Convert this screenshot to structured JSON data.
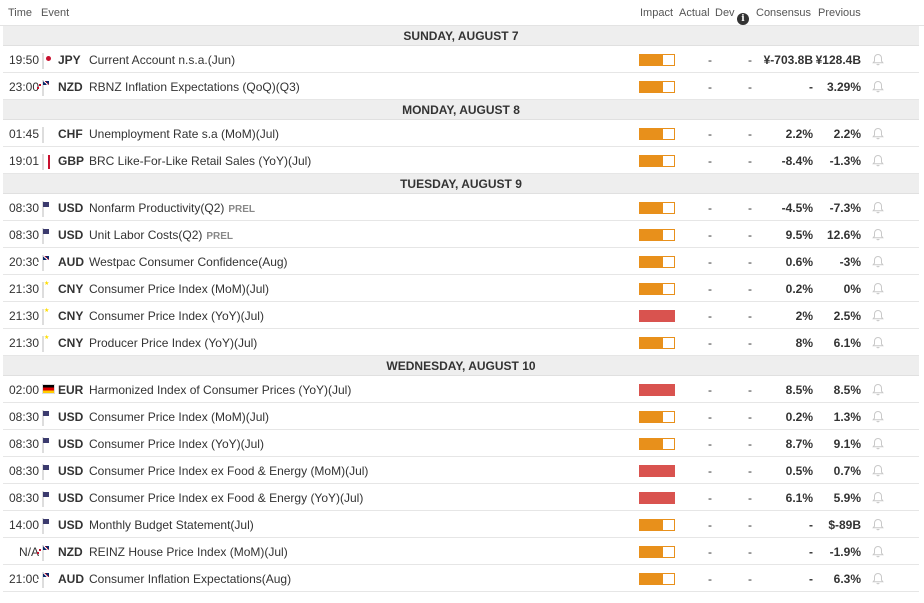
{
  "columns": {
    "time": "Time",
    "event": "Event",
    "impact": "Impact",
    "actual": "Actual",
    "dev": "Dev",
    "consensus": "Consensus",
    "previous": "Previous"
  },
  "colors": {
    "medium_impact": "#e8901b",
    "high_impact": "#d9534f",
    "day_header_bg": "#eeeeee"
  },
  "days": [
    {
      "label": "SUNDAY, AUGUST 7",
      "events": [
        {
          "time": "19:50",
          "flag": "jpy",
          "currency": "JPY",
          "name": "Current Account n.s.a.(Jun)",
          "tag": "",
          "impact": "medium",
          "actual": "-",
          "dev": "-",
          "consensus": "¥-703.8B",
          "previous": "¥128.4B"
        },
        {
          "time": "23:00",
          "flag": "nzd",
          "currency": "NZD",
          "name": "RBNZ Inflation Expectations (QoQ)(Q3)",
          "tag": "",
          "impact": "medium",
          "actual": "-",
          "dev": "-",
          "consensus": "-",
          "previous": "3.29%"
        }
      ]
    },
    {
      "label": "MONDAY, AUGUST 8",
      "events": [
        {
          "time": "01:45",
          "flag": "chf",
          "currency": "CHF",
          "name": "Unemployment Rate s.a (MoM)(Jul)",
          "tag": "",
          "impact": "medium",
          "actual": "-",
          "dev": "-",
          "consensus": "2.2%",
          "previous": "2.2%"
        },
        {
          "time": "19:01",
          "flag": "gbp",
          "currency": "GBP",
          "name": "BRC Like-For-Like Retail Sales (YoY)(Jul)",
          "tag": "",
          "impact": "medium",
          "actual": "-",
          "dev": "-",
          "consensus": "-8.4%",
          "previous": "-1.3%"
        }
      ]
    },
    {
      "label": "TUESDAY, AUGUST 9",
      "events": [
        {
          "time": "08:30",
          "flag": "usd",
          "currency": "USD",
          "name": "Nonfarm Productivity(Q2)",
          "tag": "PREL",
          "impact": "medium",
          "actual": "-",
          "dev": "-",
          "consensus": "-4.5%",
          "previous": "-7.3%"
        },
        {
          "time": "08:30",
          "flag": "usd",
          "currency": "USD",
          "name": "Unit Labor Costs(Q2)",
          "tag": "PREL",
          "impact": "medium",
          "actual": "-",
          "dev": "-",
          "consensus": "9.5%",
          "previous": "12.6%"
        },
        {
          "time": "20:30",
          "flag": "aud",
          "currency": "AUD",
          "name": "Westpac Consumer Confidence(Aug)",
          "tag": "",
          "impact": "medium",
          "actual": "-",
          "dev": "-",
          "consensus": "0.6%",
          "previous": "-3%"
        },
        {
          "time": "21:30",
          "flag": "cny",
          "currency": "CNY",
          "name": "Consumer Price Index (MoM)(Jul)",
          "tag": "",
          "impact": "medium",
          "actual": "-",
          "dev": "-",
          "consensus": "0.2%",
          "previous": "0%"
        },
        {
          "time": "21:30",
          "flag": "cny",
          "currency": "CNY",
          "name": "Consumer Price Index (YoY)(Jul)",
          "tag": "",
          "impact": "high",
          "actual": "-",
          "dev": "-",
          "consensus": "2%",
          "previous": "2.5%"
        },
        {
          "time": "21:30",
          "flag": "cny",
          "currency": "CNY",
          "name": "Producer Price Index (YoY)(Jul)",
          "tag": "",
          "impact": "medium",
          "actual": "-",
          "dev": "-",
          "consensus": "8%",
          "previous": "6.1%"
        }
      ]
    },
    {
      "label": "WEDNESDAY, AUGUST 10",
      "events": [
        {
          "time": "02:00",
          "flag": "eur",
          "currency": "EUR",
          "name": "Harmonized Index of Consumer Prices (YoY)(Jul)",
          "tag": "",
          "impact": "high",
          "actual": "-",
          "dev": "-",
          "consensus": "8.5%",
          "previous": "8.5%"
        },
        {
          "time": "08:30",
          "flag": "usd",
          "currency": "USD",
          "name": "Consumer Price Index (MoM)(Jul)",
          "tag": "",
          "impact": "medium",
          "actual": "-",
          "dev": "-",
          "consensus": "0.2%",
          "previous": "1.3%"
        },
        {
          "time": "08:30",
          "flag": "usd",
          "currency": "USD",
          "name": "Consumer Price Index (YoY)(Jul)",
          "tag": "",
          "impact": "medium",
          "actual": "-",
          "dev": "-",
          "consensus": "8.7%",
          "previous": "9.1%"
        },
        {
          "time": "08:30",
          "flag": "usd",
          "currency": "USD",
          "name": "Consumer Price Index ex Food & Energy (MoM)(Jul)",
          "tag": "",
          "impact": "high",
          "actual": "-",
          "dev": "-",
          "consensus": "0.5%",
          "previous": "0.7%"
        },
        {
          "time": "08:30",
          "flag": "usd",
          "currency": "USD",
          "name": "Consumer Price Index ex Food & Energy (YoY)(Jul)",
          "tag": "",
          "impact": "high",
          "actual": "-",
          "dev": "-",
          "consensus": "6.1%",
          "previous": "5.9%"
        },
        {
          "time": "14:00",
          "flag": "usd",
          "currency": "USD",
          "name": "Monthly Budget Statement(Jul)",
          "tag": "",
          "impact": "medium",
          "actual": "-",
          "dev": "-",
          "consensus": "-",
          "previous": "$-89B"
        },
        {
          "time": "N/A",
          "flag": "nzd",
          "currency": "NZD",
          "name": "REINZ House Price Index (MoM)(Jul)",
          "tag": "",
          "impact": "medium",
          "actual": "-",
          "dev": "-",
          "consensus": "-",
          "previous": "-1.9%"
        },
        {
          "time": "21:00",
          "flag": "aud",
          "currency": "AUD",
          "name": "Consumer Inflation Expectations(Aug)",
          "tag": "",
          "impact": "medium",
          "actual": "-",
          "dev": "-",
          "consensus": "-",
          "previous": "6.3%"
        }
      ]
    }
  ]
}
